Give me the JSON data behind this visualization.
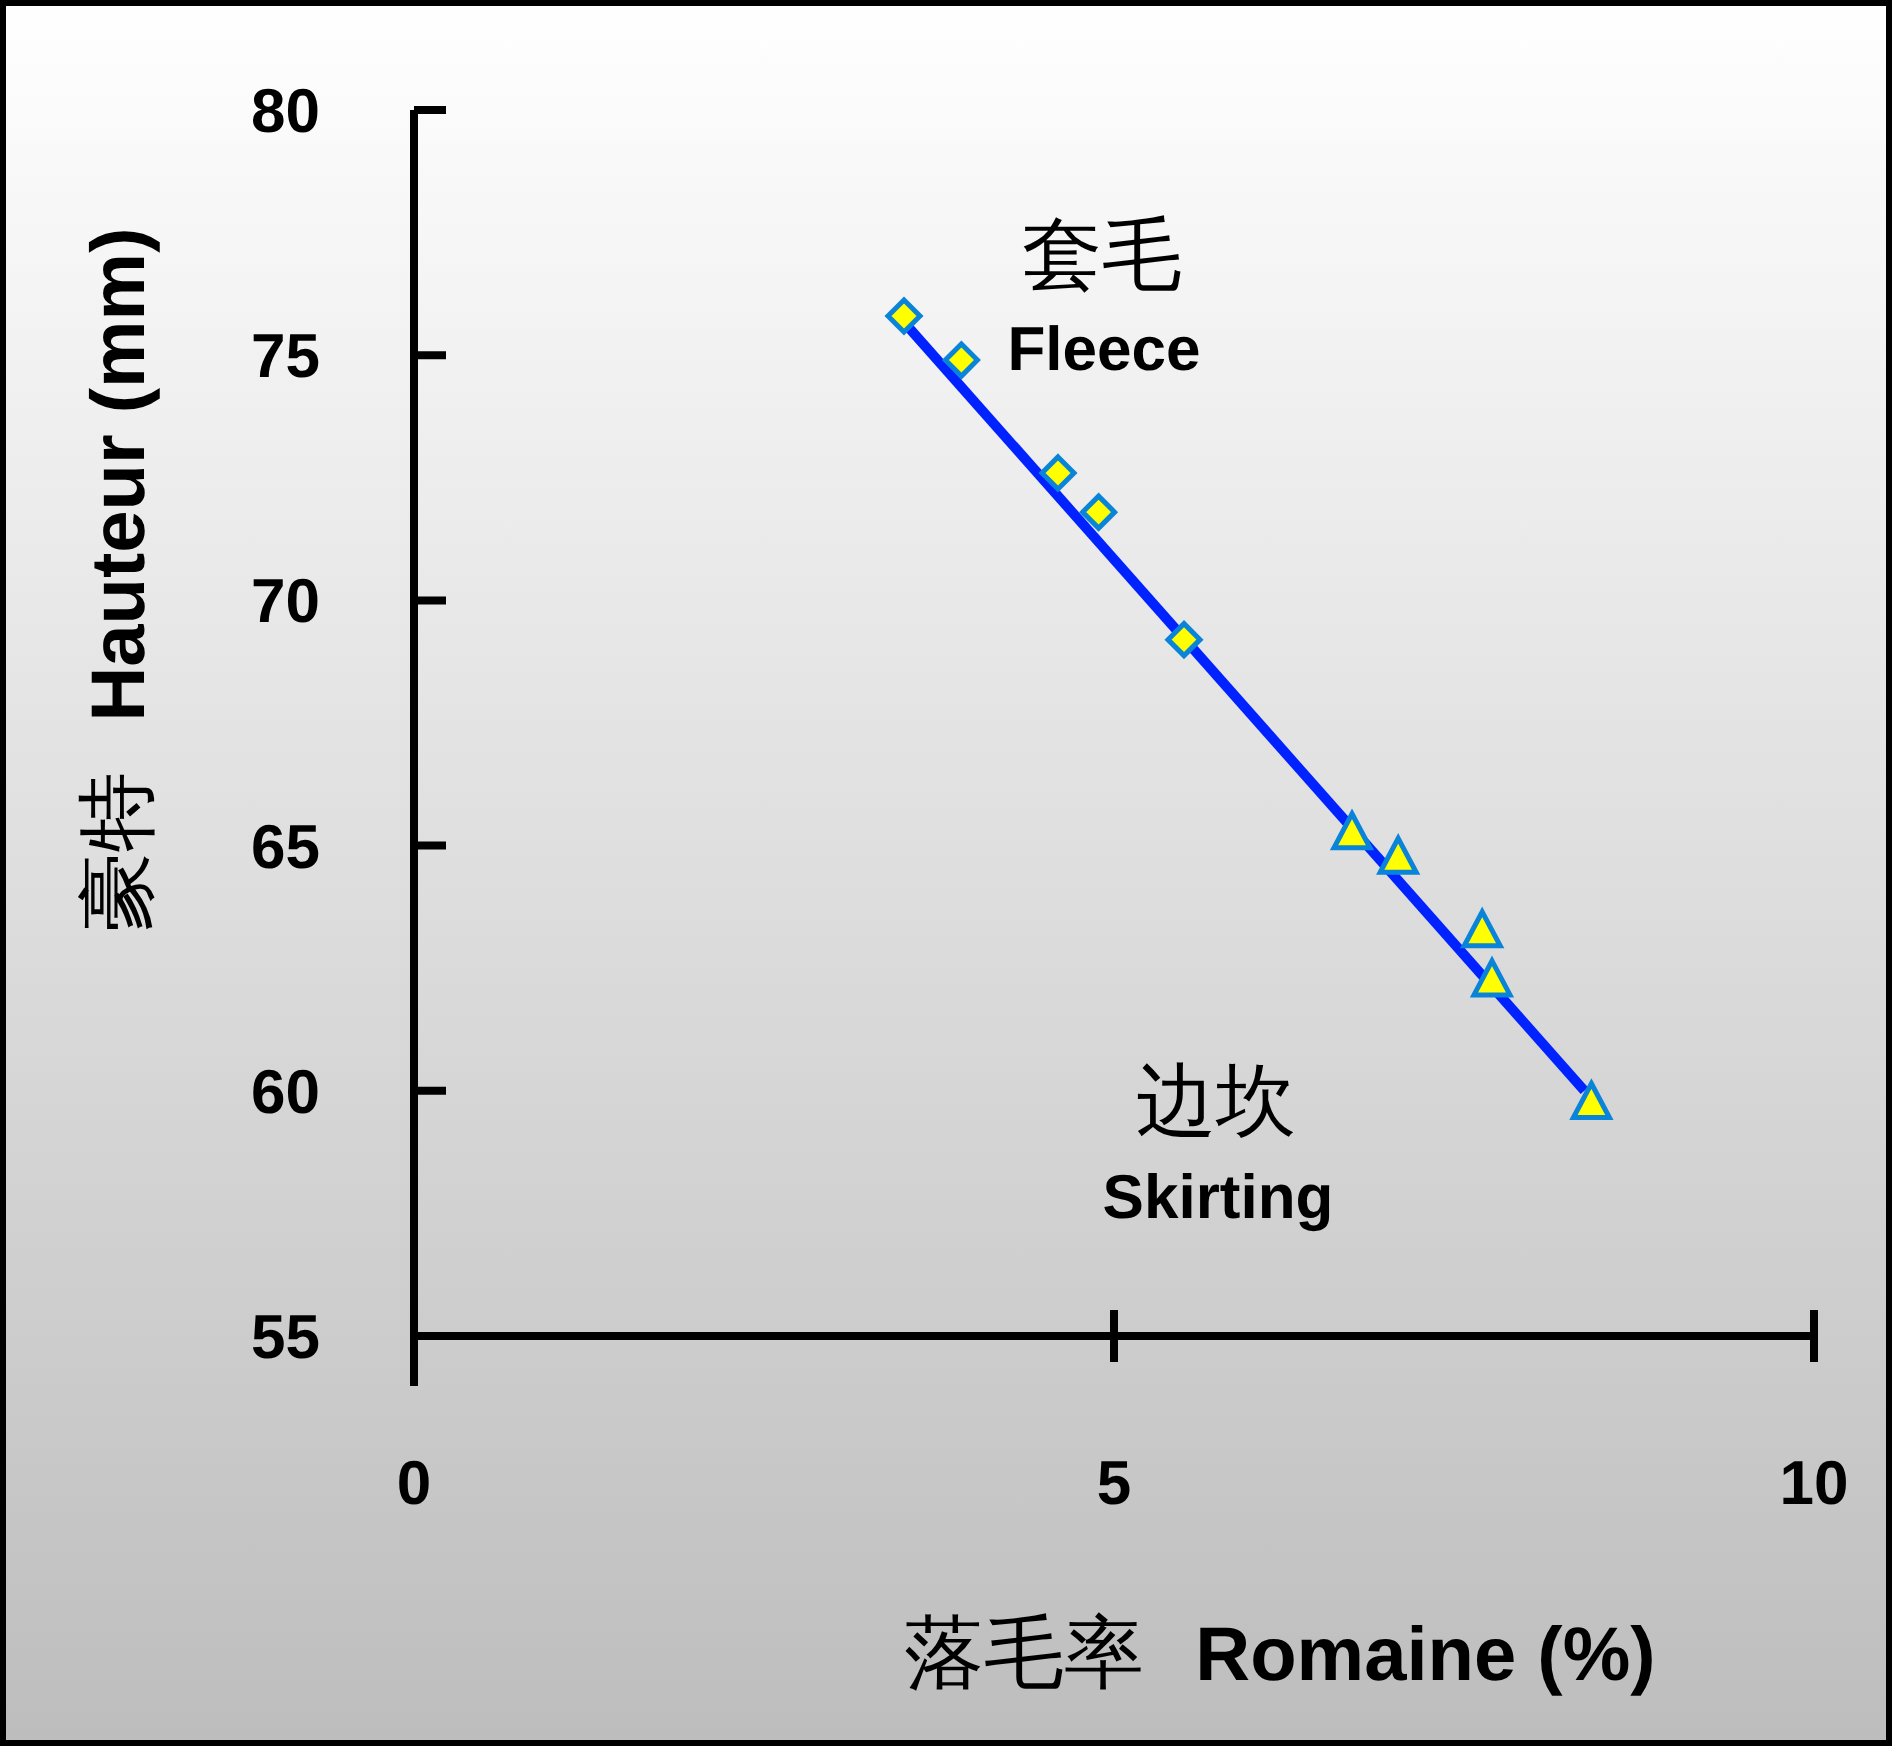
{
  "chart_data": {
    "type": "scatter",
    "xlabel": "落毛率  Romaine (%)",
    "ylabel": "豪特  Hauteur (mm)",
    "annotations": [
      "套毛",
      "Fleece",
      "边坎",
      "Skirting"
    ],
    "series": [
      {
        "marker": "diamond",
        "color": "#ffff00",
        "x": [
          3.5,
          3.91,
          4.6,
          4.89,
          5.5
        ],
        "values": [
          75.8,
          74.9,
          72.6,
          71.8,
          69.2
        ]
      },
      {
        "marker": "triangle",
        "color": "#ffff00",
        "x": [
          6.7,
          7.03,
          7.63,
          7.7,
          8.41
        ],
        "values": [
          65.2,
          64.7,
          63.2,
          62.2,
          59.7
        ]
      },
      {
        "type": "line",
        "marker": "none",
        "color": "#0022ff",
        "x": [
          3.43,
          8.36
        ],
        "values": [
          75.9,
          60.0
        ]
      }
    ],
    "xlim": [
      0,
      10
    ],
    "xticks": [
      0,
      5,
      10
    ],
    "ylim": [
      55,
      80
    ],
    "yticks": [
      55,
      60,
      65,
      70,
      75,
      80
    ],
    "grid": false
  }
}
